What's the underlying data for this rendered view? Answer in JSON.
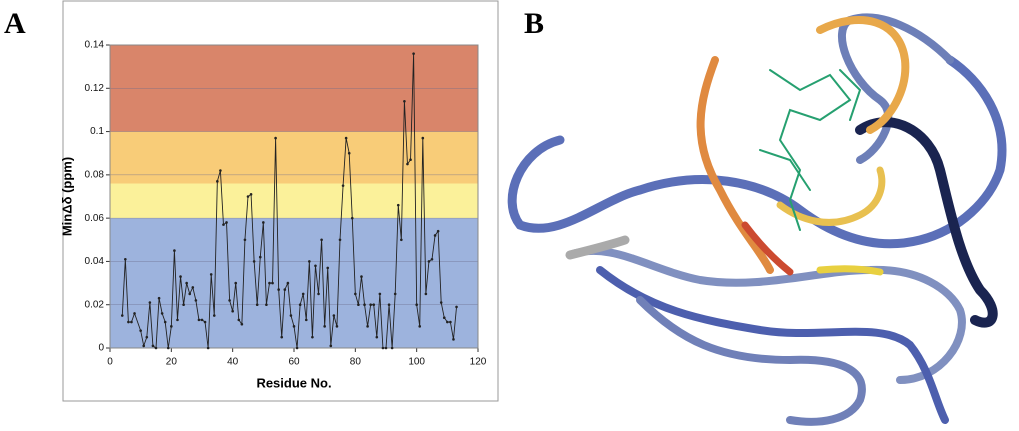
{
  "panels": [
    "A",
    "B"
  ],
  "chart_data": {
    "type": "line",
    "ylabel": "MinΔδ (ppm)",
    "xlabel": "Residue No.",
    "xlim": [
      0,
      120
    ],
    "xticks": [
      0,
      20,
      40,
      60,
      80,
      100,
      120
    ],
    "ylim": [
      0,
      0.14
    ],
    "yticks": [
      0,
      0.02,
      0.04,
      0.06,
      0.08,
      0.1,
      0.12,
      0.14
    ],
    "grid": true,
    "bands": [
      {
        "from": 0,
        "to": 0.06,
        "color": "#9db3dd"
      },
      {
        "from": 0.06,
        "to": 0.076,
        "color": "#fbf19a"
      },
      {
        "from": 0.076,
        "to": 0.1,
        "color": "#f8cc78"
      },
      {
        "from": 0.1,
        "to": 0.14,
        "color": "#d9856a"
      }
    ],
    "series": [
      {
        "color": "#222222",
        "x": [
          4,
          5,
          6,
          7,
          8,
          10,
          11,
          12,
          13,
          14,
          15,
          16,
          17,
          18,
          19,
          20,
          21,
          22,
          23,
          24,
          25,
          26,
          27,
          28,
          29,
          30,
          31,
          32,
          33,
          34,
          35,
          36,
          37,
          38,
          39,
          40,
          41,
          42,
          43,
          44,
          45,
          46,
          47,
          48,
          49,
          50,
          51,
          52,
          53,
          54,
          55,
          56,
          57,
          58,
          59,
          60,
          61,
          62,
          63,
          64,
          65,
          66,
          67,
          68,
          69,
          70,
          71,
          72,
          73,
          74,
          75,
          76,
          77,
          78,
          79,
          80,
          81,
          82,
          83,
          84,
          85,
          86,
          87,
          88,
          89,
          90,
          91,
          92,
          93,
          94,
          95,
          96,
          97,
          98,
          99,
          100,
          101,
          102,
          103,
          104,
          105,
          106,
          107,
          108,
          109,
          110,
          111,
          112,
          113
        ],
        "values": [
          0.015,
          0.041,
          0.012,
          0.012,
          0.016,
          0.008,
          0.001,
          0.005,
          0.021,
          0.001,
          0,
          0.023,
          0.016,
          0.012,
          0,
          0.01,
          0.045,
          0.013,
          0.033,
          0.02,
          0.03,
          0.025,
          0.028,
          0.022,
          0.013,
          0.013,
          0.012,
          0,
          0.034,
          0.015,
          0.077,
          0.082,
          0.057,
          0.058,
          0.022,
          0.017,
          0.03,
          0.013,
          0.011,
          0.05,
          0.07,
          0.071,
          0.04,
          0.02,
          0.042,
          0.058,
          0.02,
          0.03,
          0.03,
          0.097,
          0.027,
          0.005,
          0.027,
          0.03,
          0.015,
          0.01,
          0,
          0.02,
          0.025,
          0.013,
          0.04,
          0.005,
          0.038,
          0.025,
          0.05,
          0.01,
          0.037,
          0.001,
          0.015,
          0.01,
          0.05,
          0.075,
          0.097,
          0.09,
          0.06,
          0.025,
          0.02,
          0.033,
          0.02,
          0.01,
          0.02,
          0.02,
          0.005,
          0.025,
          0,
          0,
          0.02,
          0,
          0.025,
          0.066,
          0.05,
          0.114,
          0.085,
          0.087,
          0.136,
          0.02,
          0.01,
          0.097,
          0.025,
          0.04,
          0.041,
          0.052,
          0.054,
          0.021,
          0.014,
          0.012,
          0.012,
          0.004,
          0.019
        ]
      }
    ]
  }
}
